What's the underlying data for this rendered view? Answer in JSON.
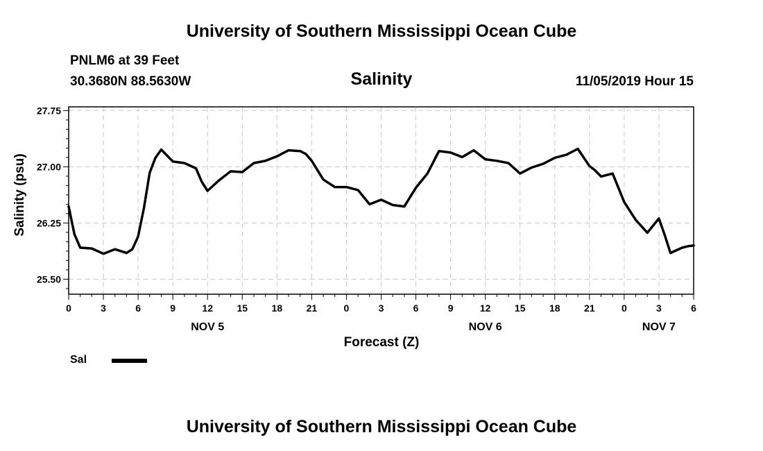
{
  "page": {
    "title_top": "University of Southern Mississippi Ocean Cube",
    "title_bottom": "University of Southern Mississippi Ocean Cube",
    "station_line1": "PNLM6 at 39 Feet",
    "station_line2": "30.3680N 88.5630W",
    "timestamp": "11/05/2019 Hour 15"
  },
  "chart_data": {
    "type": "line",
    "title": "Salinity",
    "xlabel": "Forecast (Z)",
    "ylabel": "Salinity (psu)",
    "x_unit": "forecast hour offset",
    "xlim": [
      0,
      54
    ],
    "ylim": [
      25.3,
      27.8
    ],
    "y_ticks": [
      25.5,
      26.25,
      27.0,
      27.75
    ],
    "y_tick_labels": [
      "25.50",
      "26.25",
      "27.00",
      "27.75"
    ],
    "x_ticks": [
      0,
      3,
      6,
      9,
      12,
      15,
      18,
      21,
      24,
      27,
      30,
      33,
      36,
      39,
      42,
      45,
      48,
      51,
      54
    ],
    "x_tick_labels": [
      "0",
      "3",
      "6",
      "9",
      "12",
      "15",
      "18",
      "21",
      "0",
      "3",
      "6",
      "9",
      "12",
      "15",
      "18",
      "21",
      "0",
      "3",
      "6"
    ],
    "date_labels": [
      {
        "x": 12,
        "label": "NOV 5"
      },
      {
        "x": 36,
        "label": "NOV 6"
      },
      {
        "x": 51,
        "label": "NOV 7"
      }
    ],
    "grid": true,
    "legend": [
      {
        "name": "Sal",
        "color": "#000000"
      }
    ],
    "legend_position": "bottom-left",
    "series": [
      {
        "name": "Sal",
        "color": "#000000",
        "x": [
          0,
          0.5,
          1,
          2,
          3,
          4,
          5,
          5.5,
          6,
          6.5,
          7,
          7.5,
          8,
          9,
          10,
          11,
          11.5,
          12,
          13,
          14,
          15,
          16,
          17,
          18,
          19,
          20,
          20.5,
          21,
          22,
          23,
          24,
          25,
          26,
          27,
          28,
          29,
          30,
          31,
          32,
          33,
          34,
          35,
          36,
          37,
          38,
          39,
          40,
          41,
          42,
          43,
          44,
          45,
          45.5,
          46,
          47,
          48,
          49,
          50,
          51,
          51.5,
          52,
          53,
          53.5,
          54
        ],
        "y": [
          26.47,
          26.1,
          25.92,
          25.91,
          25.84,
          25.9,
          25.85,
          25.9,
          26.07,
          26.45,
          26.92,
          27.12,
          27.23,
          27.07,
          27.05,
          26.98,
          26.8,
          26.68,
          26.82,
          26.94,
          26.93,
          27.05,
          27.08,
          27.14,
          27.22,
          27.21,
          27.17,
          27.08,
          26.83,
          26.73,
          26.73,
          26.69,
          26.5,
          26.56,
          26.49,
          26.47,
          26.72,
          26.91,
          27.21,
          27.19,
          27.13,
          27.22,
          27.1,
          27.08,
          27.05,
          26.91,
          26.99,
          27.04,
          27.12,
          27.16,
          27.24,
          27.01,
          26.95,
          26.87,
          26.91,
          26.53,
          26.29,
          26.12,
          26.31,
          26.09,
          25.85,
          25.92,
          25.94,
          25.95
        ]
      }
    ]
  }
}
